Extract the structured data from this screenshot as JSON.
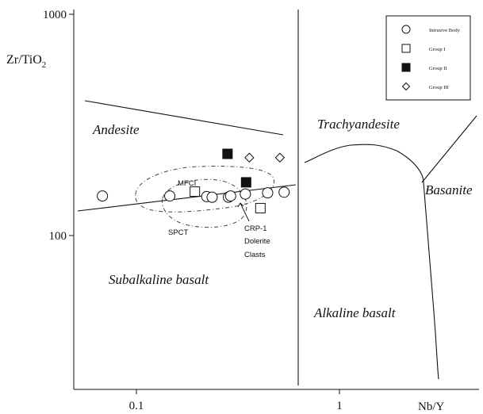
{
  "chart_data": {
    "type": "scatter",
    "title": "",
    "xlabel": "Nb/Y",
    "ylabel": "Zr/TiO",
    "ylabel_sub": "2",
    "x_scale": "log",
    "y_scale": "log",
    "xlim": [
      0.055,
      2.7
    ],
    "ylim": [
      28,
      1000
    ],
    "x_ticks": [
      {
        "value": 0.1,
        "label": "0.1"
      },
      {
        "value": 1,
        "label": "1"
      }
    ],
    "y_ticks": [
      {
        "value": 100,
        "label": "100"
      },
      {
        "value": 1000,
        "label": "1000"
      }
    ],
    "series": [
      {
        "name": "Intrusive Body",
        "marker": "circle-open",
        "color": "#111111",
        "points": [
          [
            0.068,
            151
          ],
          [
            0.146,
            151
          ],
          [
            0.222,
            150
          ],
          [
            0.236,
            149
          ],
          [
            0.284,
            149
          ],
          [
            0.291,
            151
          ],
          [
            0.344,
            154
          ],
          [
            0.443,
            156
          ],
          [
            0.534,
            157
          ]
        ]
      },
      {
        "name": "Group I",
        "marker": "square-open",
        "color": "#111111",
        "points": [
          [
            0.194,
            158
          ],
          [
            0.408,
            133
          ]
        ]
      },
      {
        "name": "Group II",
        "marker": "square-filled",
        "color": "#111111",
        "points": [
          [
            0.281,
            234
          ],
          [
            0.347,
            174
          ]
        ]
      },
      {
        "name": "Group III",
        "marker": "diamond-open",
        "color": "#111111",
        "points": [
          [
            0.36,
            225
          ],
          [
            0.509,
            225
          ]
        ]
      }
    ],
    "fields": [
      {
        "label": "Andesite"
      },
      {
        "label": "Trachyandesite"
      },
      {
        "label": "Basanite"
      },
      {
        "label": "Subalkaline basalt"
      },
      {
        "label": "Alkaline basalt"
      }
    ],
    "annotations": [
      {
        "text": "MFCI"
      },
      {
        "text": "SPCT"
      },
      {
        "text": "CRP-1"
      },
      {
        "text": "Dolerite"
      },
      {
        "text": "Clasts"
      }
    ],
    "grid": false,
    "legend_position": "top-right"
  }
}
